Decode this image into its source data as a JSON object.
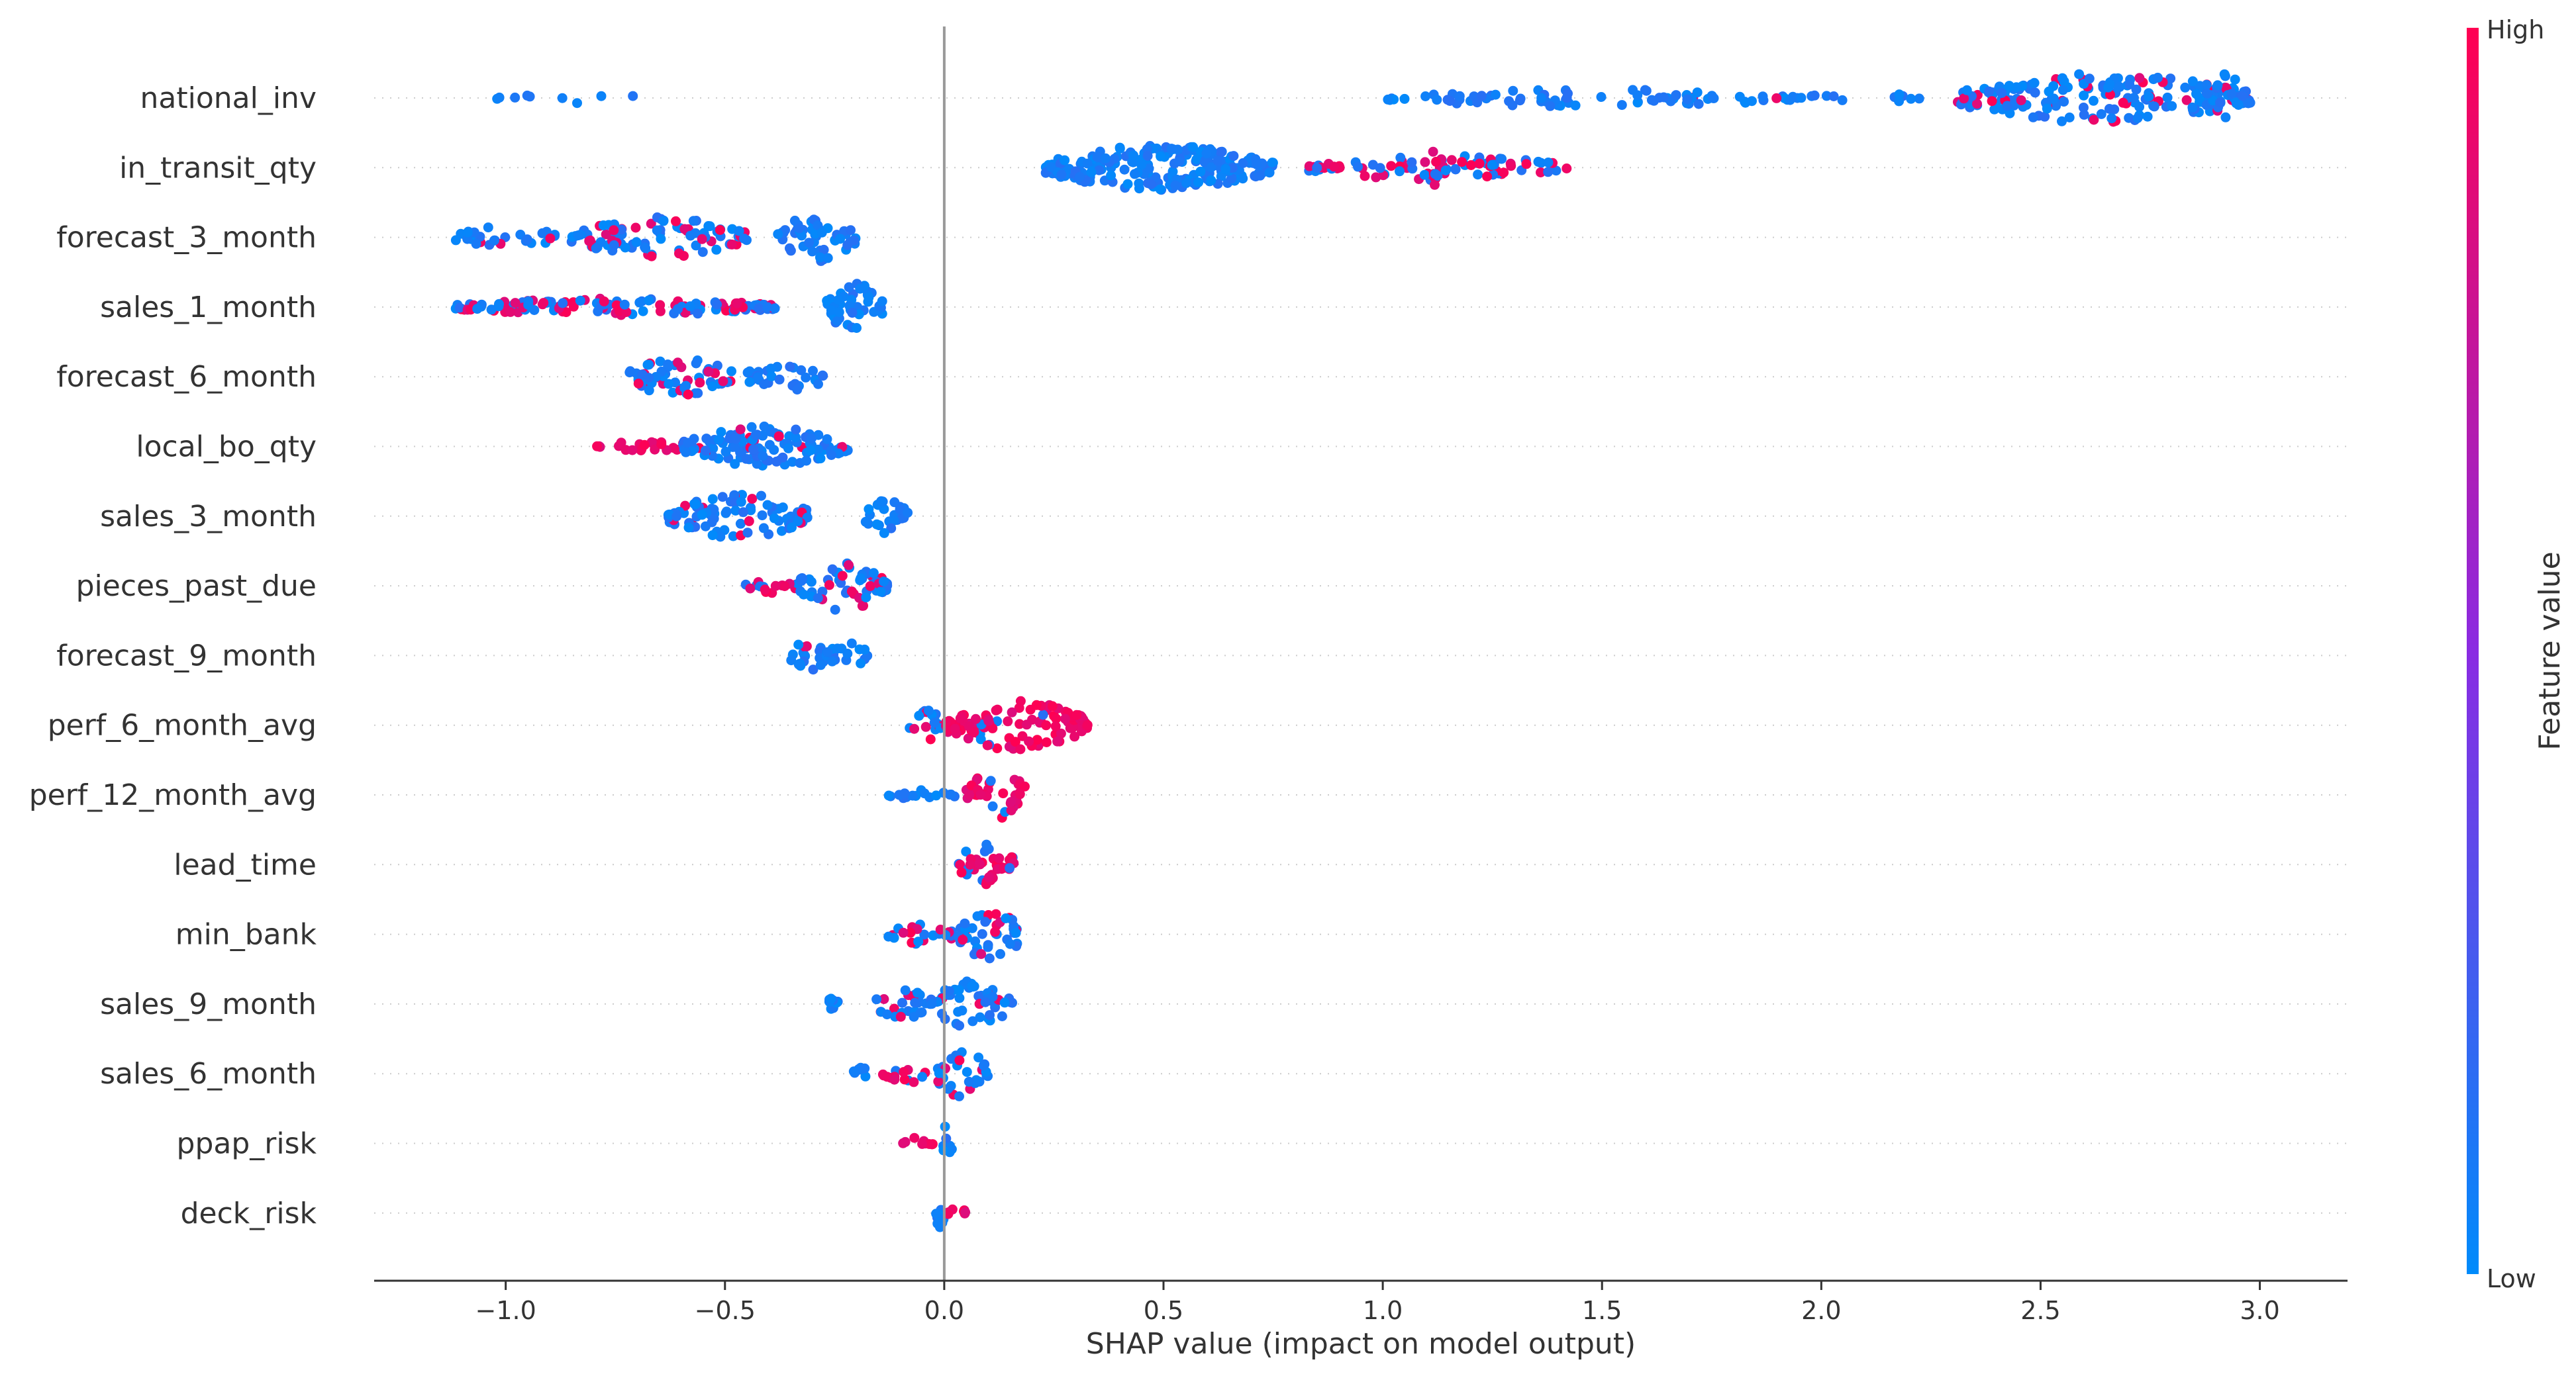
{
  "chart_data": {
    "type": "scatter",
    "subtype": "shap-beeswarm",
    "title": "",
    "xlabel": "SHAP value (impact on model output)",
    "ylabel": "",
    "xlim": [
      -1.3,
      3.2
    ],
    "x_ticks": [
      -1.0,
      -0.5,
      0.0,
      0.5,
      1.0,
      1.5,
      2.0,
      2.5,
      3.0
    ],
    "x_tick_labels": [
      "−1.0",
      "−0.5",
      "0.0",
      "0.5",
      "1.0",
      "1.5",
      "2.0",
      "2.5",
      "3.0"
    ],
    "zero_line": 0.0,
    "colorbar": {
      "title": "Feature value",
      "high_label": "High",
      "low_label": "Low",
      "high_color": "#ff0052",
      "low_color": "#008bfb"
    },
    "features": [
      {
        "name": "national_inv",
        "clusters": [
          [
            -1.02,
            -0.7,
            0.05,
            0.25,
            0.0
          ],
          [
            1.0,
            1.95,
            0.15,
            0.35,
            0.02
          ],
          [
            1.95,
            2.25,
            0.07,
            0.2,
            0.05
          ],
          [
            2.3,
            2.98,
            0.5,
            1.0,
            0.2
          ],
          [
            2.88,
            2.98,
            0.3,
            1.0,
            0.05
          ]
        ]
      },
      {
        "name": "in_transit_qty",
        "clusters": [
          [
            0.23,
            0.75,
            0.7,
            0.9,
            0.0
          ],
          [
            0.83,
            1.42,
            0.25,
            0.5,
            0.45
          ],
          [
            1.08,
            1.16,
            0.2,
            0.7,
            0.7
          ]
        ]
      },
      {
        "name": "forecast_3_month",
        "clusters": [
          [
            -1.12,
            -0.88,
            0.2,
            0.45,
            0.05
          ],
          [
            -0.85,
            -0.45,
            0.4,
            0.8,
            0.3
          ],
          [
            -0.38,
            -0.2,
            0.5,
            1.0,
            0.0
          ]
        ]
      },
      {
        "name": "sales_1_month",
        "clusters": [
          [
            -1.12,
            -0.38,
            0.35,
            0.35,
            0.35
          ],
          [
            -0.27,
            -0.14,
            0.6,
            1.0,
            0.0
          ]
        ]
      },
      {
        "name": "forecast_6_month",
        "clusters": [
          [
            -0.72,
            -0.48,
            0.45,
            0.8,
            0.25
          ],
          [
            -0.45,
            -0.27,
            0.3,
            0.7,
            0.0
          ]
        ]
      },
      {
        "name": "local_bo_qty",
        "clusters": [
          [
            -0.8,
            -0.55,
            0.15,
            0.2,
            1.0
          ],
          [
            -0.6,
            -0.22,
            0.55,
            0.8,
            0.1
          ]
        ]
      },
      {
        "name": "sales_3_month",
        "clusters": [
          [
            -0.63,
            -0.31,
            0.5,
            0.9,
            0.15
          ],
          [
            -0.19,
            -0.08,
            0.4,
            0.7,
            0.0
          ]
        ]
      },
      {
        "name": "pieces_past_due",
        "clusters": [
          [
            -0.48,
            -0.33,
            0.2,
            0.3,
            0.75
          ],
          [
            -0.33,
            -0.13,
            0.5,
            1.0,
            0.15
          ]
        ]
      },
      {
        "name": "forecast_9_month",
        "clusters": [
          [
            -0.35,
            -0.27,
            0.4,
            0.7,
            0.1
          ],
          [
            -0.27,
            -0.17,
            0.3,
            0.5,
            0.0
          ]
        ]
      },
      {
        "name": "perf_6_month_avg",
        "clusters": [
          [
            -0.08,
            0.0,
            0.4,
            0.6,
            0.25
          ],
          [
            0.0,
            0.33,
            0.6,
            1.0,
            0.95
          ]
        ]
      },
      {
        "name": "perf_12_month_avg",
        "clusters": [
          [
            -0.13,
            0.05,
            0.15,
            0.2,
            0.05
          ],
          [
            0.05,
            0.19,
            0.45,
            1.0,
            0.85
          ]
        ]
      },
      {
        "name": "lead_time",
        "clusters": [
          [
            0.03,
            0.16,
            0.5,
            0.9,
            0.75
          ]
        ]
      },
      {
        "name": "min_bank",
        "clusters": [
          [
            -0.13,
            0.03,
            0.3,
            0.4,
            0.35
          ],
          [
            0.03,
            0.18,
            0.5,
            1.0,
            0.25
          ]
        ]
      },
      {
        "name": "sales_9_month",
        "clusters": [
          [
            -0.28,
            -0.24,
            0.05,
            0.3,
            0.0
          ],
          [
            -0.16,
            -0.03,
            0.35,
            0.6,
            0.25
          ],
          [
            -0.03,
            0.16,
            0.45,
            1.0,
            0.2
          ]
        ]
      },
      {
        "name": "sales_6_month",
        "clusters": [
          [
            -0.21,
            -0.17,
            0.05,
            0.3,
            0.0
          ],
          [
            -0.14,
            -0.02,
            0.2,
            0.35,
            0.6
          ],
          [
            -0.02,
            0.1,
            0.45,
            1.0,
            0.2
          ]
        ]
      },
      {
        "name": "ppap_risk",
        "clusters": [
          [
            -0.1,
            -0.02,
            0.2,
            0.25,
            1.0
          ],
          [
            -0.01,
            0.02,
            0.35,
            0.7,
            0.0
          ]
        ]
      },
      {
        "name": "deck_risk",
        "clusters": [
          [
            -0.02,
            0.0,
            0.5,
            0.6,
            0.0
          ],
          [
            0.0,
            0.05,
            0.18,
            0.25,
            1.0
          ]
        ]
      }
    ]
  }
}
